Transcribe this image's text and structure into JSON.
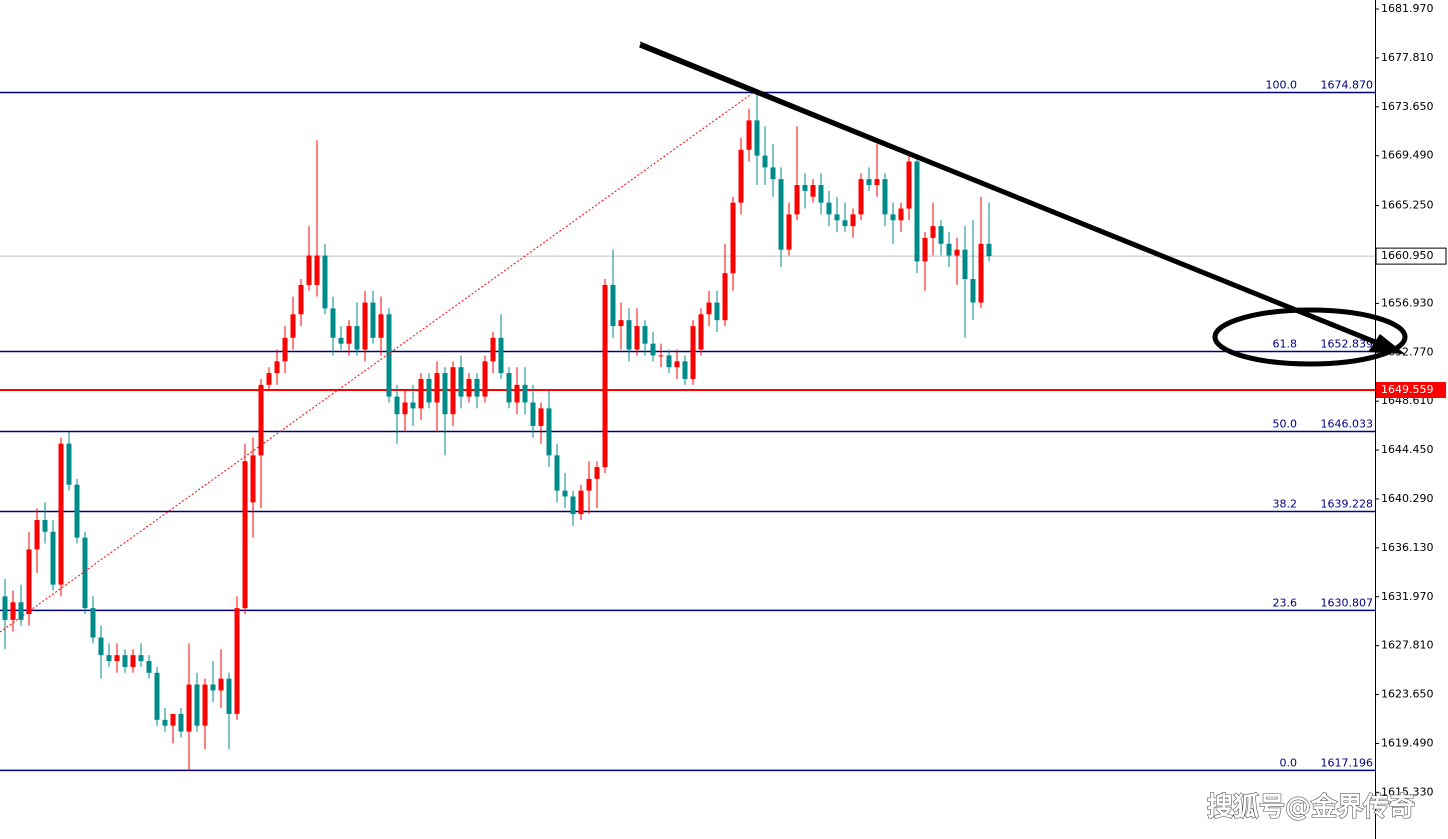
{
  "chart_data": {
    "type": "candlestick",
    "up_color": "#ff0000",
    "down_color": "#008b8b",
    "ylim": [
      1611.36,
      1682.74
    ],
    "yticks": [
      {
        "value": 1681.97,
        "label": "1681.970"
      },
      {
        "value": 1677.81,
        "label": "1677.810"
      },
      {
        "value": 1673.65,
        "label": "1673.650"
      },
      {
        "value": 1669.49,
        "label": "1669.490"
      },
      {
        "value": 1665.25,
        "label": "1665.250"
      },
      {
        "value": 1656.93,
        "label": "1656.930"
      },
      {
        "value": 1652.77,
        "label": "1652.770"
      },
      {
        "value": 1648.61,
        "label": "1648.610"
      },
      {
        "value": 1644.45,
        "label": "1644.450"
      },
      {
        "value": 1640.29,
        "label": "1640.290"
      },
      {
        "value": 1636.13,
        "label": "1636.130"
      },
      {
        "value": 1631.97,
        "label": "1631.970"
      },
      {
        "value": 1627.81,
        "label": "1627.810"
      },
      {
        "value": 1623.65,
        "label": "1623.650"
      },
      {
        "value": 1619.49,
        "label": "1619.490"
      },
      {
        "value": 1615.33,
        "label": "1615.330"
      }
    ],
    "levels": [
      {
        "ratio": "100.0",
        "value": {
          "value": 1674.87,
          "label": "1674.870"
        }
      },
      {
        "ratio": "61.8",
        "value": 1652.839
      },
      {
        "ratio": "50.0",
        "value": 1646.033
      },
      {
        "ratio": "38.2",
        "value": 1639.228
      },
      {
        "ratio": "23.6",
        "value": 1630.807
      },
      {
        "ratio": "0.0",
        "value": 1617.196
      }
    ],
    "current_price": {
      "value": 1660.95,
      "label": "1660.950"
    },
    "alert_price": 1649.559,
    "watermark": "搜狐号@金界传奇",
    "open": [
      1632.0,
      1630.0,
      1631.5,
      1630.5,
      1636.0,
      1638.5,
      1637.5,
      1633.0,
      1645.0,
      1641.5,
      1637.0,
      1631.0,
      1628.5,
      1627.0,
      1626.5,
      1627.0,
      1626.0,
      1627.0,
      1626.5,
      1625.5,
      1621.5,
      1621.0,
      1622.0,
      1620.5,
      1624.5,
      1621.0,
      1624.5,
      1624.0,
      1625.0,
      1622.0,
      1631.0,
      1640.0,
      1644.0,
      1650.0,
      1651.0,
      1652.0,
      1654.0,
      1656.0,
      1658.5,
      1658.5,
      1661.0,
      1656.5,
      1654.0,
      1653.5,
      1655.0,
      1653.0,
      1657.0,
      1654.0,
      1656.0,
      1649.0,
      1647.5,
      1648.5,
      1648.0,
      1650.5,
      1648.5,
      1651.0,
      1647.5,
      1651.5,
      1649.0,
      1650.5,
      1649.0,
      1652.0,
      1654.0,
      1651.0,
      1648.5,
      1650.0,
      1648.5,
      1646.5,
      1648.0,
      1644.0,
      1641.0,
      1640.5,
      1639.0,
      1641.0,
      1642.0,
      1643.0,
      1658.5,
      1655.0,
      1655.5,
      1653.0,
      1655.0,
      1653.5,
      1652.5,
      1652.5,
      1651.5,
      1652.0,
      1650.5,
      1653.0,
      1656.0,
      1657.0,
      1655.5,
      1659.5,
      1665.5,
      1670.0,
      1672.5,
      1669.5,
      1668.5,
      1667.5,
      1661.5,
      1664.5,
      1667.0,
      1666.0,
      1667.0,
      1665.5,
      1664.5,
      1664.0,
      1663.5,
      1664.5,
      1667.5,
      1667.0,
      1667.5,
      1664.5,
      1664.0,
      1665.0,
      1669.0,
      1660.5,
      1662.5,
      1663.5,
      1662.0,
      1661.0,
      1661.5,
      1659.0,
      1657.0,
      1662.0
    ],
    "high": [
      1633.5,
      1632.5,
      1633.0,
      1637.5,
      1639.5,
      1640.0,
      1638.5,
      1645.5,
      1646.0,
      1642.0,
      1637.5,
      1632.0,
      1629.5,
      1628.0,
      1628.0,
      1627.5,
      1627.5,
      1628.0,
      1627.0,
      1626.0,
      1622.5,
      1622.0,
      1622.5,
      1628.0,
      1625.5,
      1625.0,
      1626.5,
      1627.5,
      1625.5,
      1632.0,
      1645.0,
      1645.5,
      1650.5,
      1651.5,
      1653.0,
      1655.0,
      1657.5,
      1659.0,
      1663.5,
      1670.8,
      1662.0,
      1657.5,
      1655.0,
      1655.5,
      1657.0,
      1658.0,
      1658.0,
      1657.5,
      1656.5,
      1650.0,
      1649.5,
      1650.0,
      1651.0,
      1651.0,
      1652.0,
      1651.5,
      1652.0,
      1652.5,
      1651.0,
      1651.0,
      1652.5,
      1654.5,
      1656.0,
      1651.5,
      1651.5,
      1651.5,
      1650.0,
      1648.5,
      1649.5,
      1645.0,
      1642.5,
      1641.0,
      1641.5,
      1643.5,
      1643.5,
      1659.0,
      1661.5,
      1657.0,
      1656.5,
      1656.5,
      1655.5,
      1654.5,
      1653.5,
      1653.0,
      1653.0,
      1652.5,
      1655.5,
      1656.5,
      1658.0,
      1658.0,
      1662.0,
      1666.0,
      1671.0,
      1673.5,
      1674.87,
      1672.0,
      1670.5,
      1668.5,
      1665.5,
      1672.0,
      1668.0,
      1667.5,
      1668.0,
      1666.5,
      1666.0,
      1665.5,
      1665.0,
      1668.0,
      1668.5,
      1670.5,
      1668.0,
      1665.5,
      1665.5,
      1669.5,
      1669.5,
      1663.0,
      1665.5,
      1664.0,
      1663.0,
      1662.5,
      1663.5,
      1664.0,
      1666.0,
      1665.5
    ],
    "low": [
      1627.5,
      1629.0,
      1629.5,
      1629.5,
      1634.0,
      1636.5,
      1632.5,
      1632.0,
      1641.0,
      1636.5,
      1630.5,
      1628.0,
      1625.0,
      1626.0,
      1625.5,
      1625.5,
      1625.5,
      1626.0,
      1625.0,
      1621.0,
      1620.5,
      1619.5,
      1620.0,
      1617.2,
      1620.5,
      1619.0,
      1623.0,
      1622.5,
      1619.0,
      1621.5,
      1630.5,
      1637.0,
      1639.5,
      1649.5,
      1650.0,
      1651.0,
      1653.0,
      1655.0,
      1658.0,
      1657.5,
      1656.0,
      1652.5,
      1653.0,
      1652.5,
      1652.5,
      1652.0,
      1653.5,
      1652.5,
      1648.5,
      1645.0,
      1646.0,
      1646.5,
      1647.0,
      1648.0,
      1646.0,
      1644.0,
      1646.5,
      1648.0,
      1648.5,
      1648.0,
      1648.5,
      1651.0,
      1650.5,
      1648.0,
      1647.5,
      1647.5,
      1645.5,
      1645.0,
      1643.0,
      1640.0,
      1639.5,
      1638.0,
      1638.5,
      1639.0,
      1639.5,
      1642.5,
      1654.0,
      1653.0,
      1652.0,
      1652.5,
      1652.5,
      1652.0,
      1651.5,
      1651.0,
      1650.5,
      1650.0,
      1650.0,
      1652.5,
      1655.0,
      1654.5,
      1655.0,
      1658.0,
      1664.5,
      1669.0,
      1667.0,
      1667.0,
      1666.0,
      1660.0,
      1661.0,
      1664.0,
      1665.0,
      1665.5,
      1664.5,
      1663.5,
      1663.0,
      1663.0,
      1662.5,
      1664.0,
      1666.5,
      1666.0,
      1663.5,
      1662.0,
      1663.0,
      1664.0,
      1659.5,
      1658.0,
      1661.0,
      1661.0,
      1660.0,
      1658.5,
      1654.0,
      1655.5,
      1656.5,
      1660.5
    ],
    "close": [
      1630.0,
      1631.5,
      1630.0,
      1636.0,
      1638.5,
      1637.5,
      1633.0,
      1645.0,
      1641.5,
      1637.0,
      1631.0,
      1628.5,
      1627.0,
      1626.5,
      1627.0,
      1626.0,
      1627.0,
      1626.5,
      1625.5,
      1621.5,
      1621.0,
      1622.0,
      1620.5,
      1624.5,
      1621.0,
      1624.5,
      1624.0,
      1625.0,
      1622.0,
      1631.0,
      1643.5,
      1644.0,
      1650.0,
      1651.0,
      1652.0,
      1654.0,
      1656.0,
      1658.5,
      1661.0,
      1661.0,
      1656.5,
      1654.0,
      1653.5,
      1655.0,
      1653.0,
      1657.0,
      1654.0,
      1656.0,
      1649.0,
      1647.5,
      1648.5,
      1648.0,
      1650.5,
      1648.5,
      1651.0,
      1647.5,
      1651.5,
      1649.0,
      1650.5,
      1649.0,
      1652.0,
      1654.0,
      1651.0,
      1648.5,
      1650.0,
      1648.5,
      1646.5,
      1648.0,
      1644.0,
      1641.0,
      1640.5,
      1639.0,
      1641.0,
      1642.0,
      1643.0,
      1658.5,
      1655.0,
      1655.5,
      1653.0,
      1655.0,
      1653.5,
      1652.5,
      1652.5,
      1651.5,
      1652.0,
      1650.5,
      1655.0,
      1656.0,
      1657.0,
      1655.5,
      1659.5,
      1665.5,
      1670.0,
      1672.5,
      1669.5,
      1668.5,
      1667.5,
      1661.5,
      1664.5,
      1667.0,
      1666.5,
      1667.0,
      1665.5,
      1664.5,
      1664.0,
      1663.5,
      1664.5,
      1667.5,
      1667.0,
      1667.5,
      1664.5,
      1664.0,
      1665.0,
      1669.0,
      1660.5,
      1662.5,
      1663.5,
      1662.0,
      1661.0,
      1661.5,
      1659.0,
      1657.0,
      1662.0,
      1660.95
    ]
  }
}
